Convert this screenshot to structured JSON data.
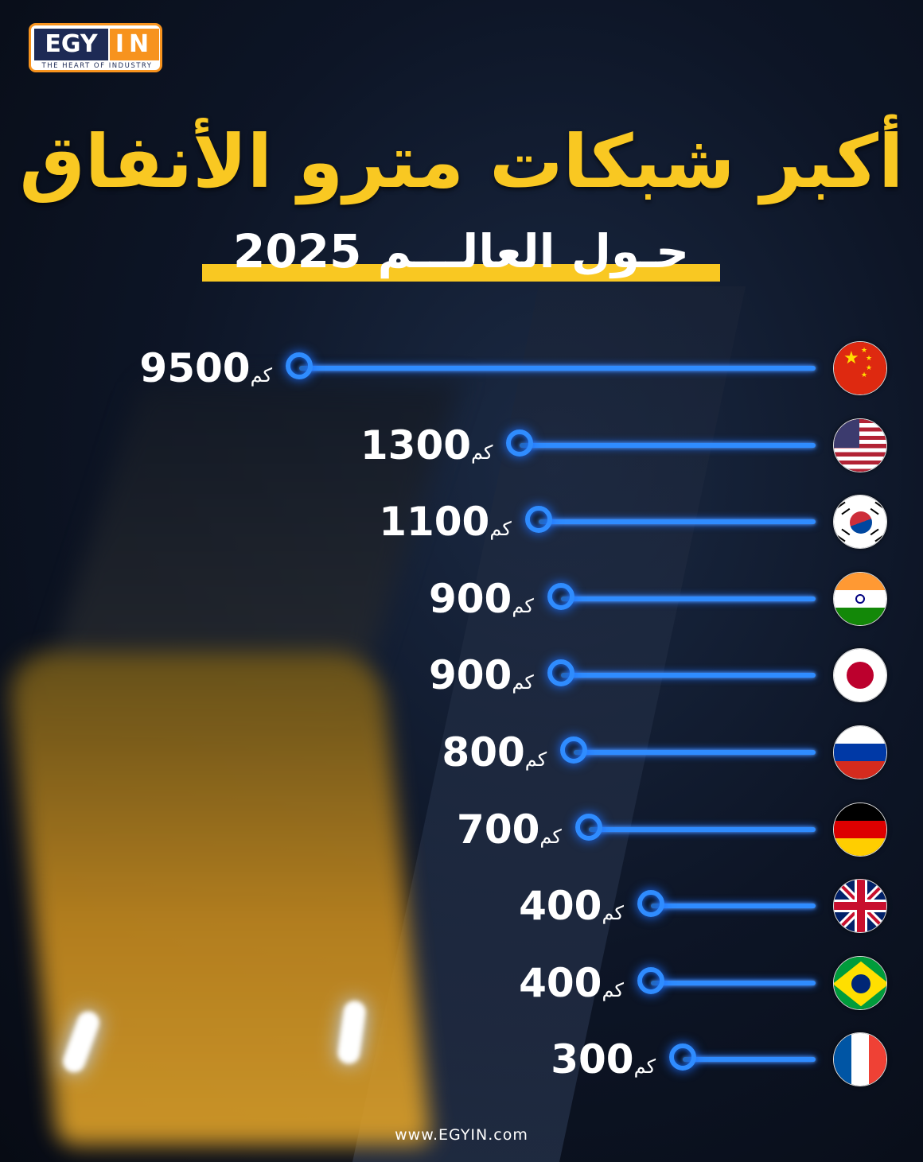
{
  "logo": {
    "left": "EGY",
    "right": "IN",
    "tagline": "THE HEART OF INDUSTRY"
  },
  "title": "أكبر شبكات مترو الأنفاق",
  "subtitle": "حـول العالـــم 2025",
  "footer": "www.EGYIN.com",
  "colors": {
    "title": "#f9c822",
    "line": "#2f8cff",
    "text": "#ffffff"
  },
  "chart_data": {
    "type": "bar",
    "unit": "كم",
    "categories": [
      "china",
      "united-states",
      "south-korea",
      "india",
      "japan",
      "russia",
      "germany",
      "united-kingdom",
      "brazil",
      "france"
    ],
    "values": [
      9500,
      1300,
      1100,
      900,
      900,
      800,
      700,
      400,
      400,
      300
    ],
    "labels": [
      "9500",
      "1300",
      "1100",
      "900",
      "900",
      "800",
      "700",
      "400",
      "400",
      "300"
    ]
  }
}
